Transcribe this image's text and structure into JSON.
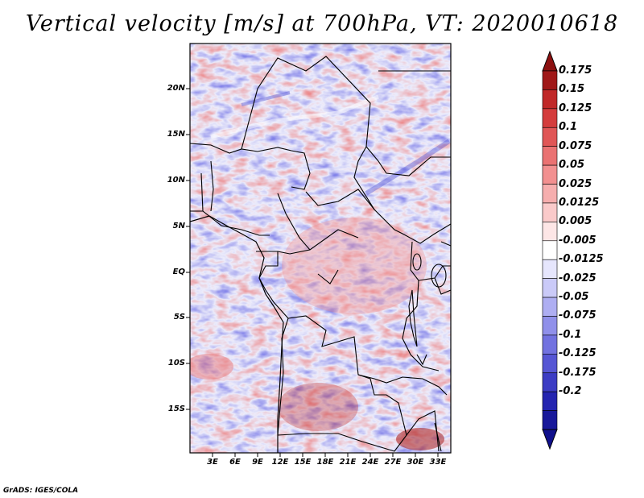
{
  "title": "Vertical velocity [m/s] at 700hPa, VT: 2020010618",
  "credit": "GrADS: IGES/COLA",
  "lat_labels": [
    "20N",
    "15N",
    "10N",
    "5N",
    "EQ",
    "5S",
    "10S",
    "15S"
  ],
  "lon_labels": [
    "3E",
    "6E",
    "9E",
    "12E",
    "15E",
    "18E",
    "21E",
    "24E",
    "27E",
    "30E",
    "33E"
  ],
  "colorbar": {
    "labels": [
      "0.175",
      "0.15",
      "0.125",
      "0.1",
      "0.075",
      "0.05",
      "0.025",
      "0.0125",
      "0.005",
      "-0.005",
      "-0.0125",
      "-0.025",
      "-0.05",
      "-0.075",
      "-0.1",
      "-0.125",
      "-0.175",
      "-0.2"
    ],
    "colors": [
      "#a01818",
      "#c02828",
      "#d43c3c",
      "#e05656",
      "#ea7272",
      "#f29090",
      "#f6aeae",
      "#facaca",
      "#fde6e6",
      "#ffffff",
      "#e6e6fd",
      "#cacaf8",
      "#aeaef2",
      "#9090ea",
      "#7272e0",
      "#5656d4",
      "#3c3cc4",
      "#2424b0",
      "#18189a"
    ],
    "top_arrow_color": "#8c1010",
    "bottom_arrow_color": "#10108c"
  }
}
